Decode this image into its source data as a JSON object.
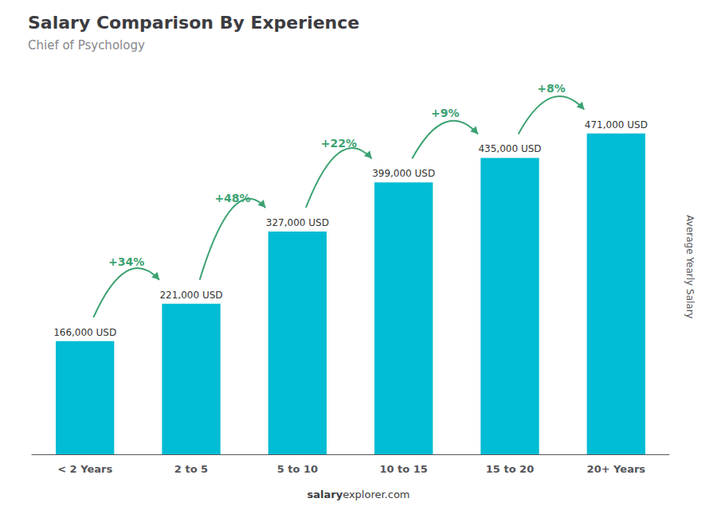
{
  "chart_data": {
    "type": "bar",
    "title": "Salary Comparison By Experience",
    "subtitle": "Chief of Psychology",
    "ylabel": "Average Yearly Salary",
    "categories": [
      "< 2 Years",
      "2 to 5",
      "5 to 10",
      "10 to 15",
      "15 to 20",
      "20+ Years"
    ],
    "values": [
      166000,
      221000,
      327000,
      399000,
      435000,
      471000
    ],
    "value_labels": [
      "166,000 USD",
      "221,000 USD",
      "327,000 USD",
      "399,000 USD",
      "435,000 USD",
      "471,000 USD"
    ],
    "data_labels": true,
    "color": "#00bcd4",
    "ylim": [
      0,
      550000
    ],
    "grid": false,
    "tick_labels": "x",
    "annotations": [
      "+34%",
      "+48%",
      "+22%",
      "+9%",
      "+8%"
    ],
    "footer": [
      "salary",
      "explorer.com"
    ]
  }
}
